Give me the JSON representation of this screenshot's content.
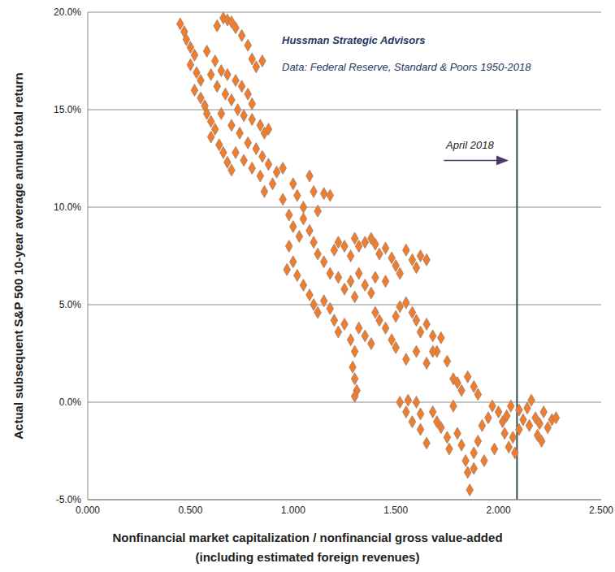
{
  "chart_data": {
    "type": "scatter",
    "title": "Hussman Strategic Advisors",
    "subtitle": "Data: Federal Reserve, Standard & Poors 1950-2018",
    "xlabel": [
      "Nonfinancial market capitalization / nonfinancial gross value-added",
      "(including estimated foreign revenues)"
    ],
    "ylabel": "Actual subsequent S&P 500 10-year average annual total return",
    "x": [
      0.45,
      0.47,
      0.48,
      0.5,
      0.52,
      0.5,
      0.53,
      0.55,
      0.52,
      0.55,
      0.57,
      0.58,
      0.6,
      0.62,
      0.6,
      0.64,
      0.66,
      0.68,
      0.7,
      0.66,
      0.68,
      0.7,
      0.72,
      0.63,
      0.75,
      0.78,
      0.8,
      0.82,
      0.85,
      0.58,
      0.62,
      0.65,
      0.68,
      0.72,
      0.75,
      0.78,
      0.8,
      0.6,
      0.63,
      0.67,
      0.7,
      0.73,
      0.76,
      0.8,
      0.84,
      0.86,
      0.88,
      0.65,
      0.7,
      0.74,
      0.78,
      0.82,
      0.85,
      0.88,
      0.72,
      0.76,
      0.8,
      0.84,
      0.9,
      0.86,
      0.92,
      0.95,
      0.95,
      1.0,
      1.02,
      1.05,
      1.08,
      1.1,
      1.12,
      1.15,
      1.18,
      0.98,
      1.0,
      1.03,
      1.05,
      1.08,
      1.1,
      1.12,
      0.98,
      1.0,
      1.02,
      0.97,
      1.05,
      1.08,
      1.1,
      1.12,
      1.15,
      1.18,
      1.2,
      1.22,
      1.25,
      1.28,
      1.3,
      1.32,
      1.35,
      1.38,
      1.4,
      1.42,
      1.45,
      1.48,
      1.5,
      1.52,
      1.55,
      1.58,
      1.6,
      1.62,
      1.65,
      1.22,
      1.25,
      1.28,
      1.3,
      1.32,
      1.35,
      1.38,
      1.4,
      1.45,
      1.15,
      1.18,
      1.2,
      1.22,
      1.25,
      1.28,
      1.3,
      1.29,
      1.3,
      1.31,
      1.3,
      1.32,
      1.35,
      1.38,
      1.4,
      1.42,
      1.45,
      1.48,
      1.5,
      1.52,
      1.55,
      1.58,
      1.6,
      1.62,
      1.65,
      1.68,
      1.7,
      1.72,
      1.5,
      1.55,
      1.6,
      1.65,
      1.68,
      1.75,
      1.78,
      1.8,
      1.82,
      1.85,
      1.88,
      1.9,
      1.52,
      1.56,
      1.6,
      1.55,
      1.58,
      1.62,
      1.65,
      1.62,
      1.68,
      1.7,
      1.72,
      1.75,
      1.76,
      1.78,
      1.8,
      1.82,
      1.84,
      1.85,
      1.86,
      1.88,
      1.9,
      1.92,
      1.95,
      1.97,
      2.0,
      2.02,
      2.04,
      2.05,
      2.07,
      2.08,
      2.1,
      2.1,
      2.12,
      2.14,
      2.15,
      2.16,
      2.18,
      2.2,
      2.22,
      2.24,
      2.26,
      2.28,
      2.06,
      2.03,
      1.98,
      1.93,
      1.88,
      2.19,
      2.21
    ],
    "values": [
      19.4,
      19.0,
      18.6,
      18.2,
      17.8,
      17.3,
      16.9,
      16.5,
      16.0,
      15.6,
      15.2,
      14.8,
      14.4,
      14.0,
      13.6,
      13.2,
      12.8,
      12.3,
      11.9,
      19.7,
      19.6,
      19.5,
      19.2,
      19.3,
      18.8,
      18.3,
      17.6,
      17.2,
      17.5,
      18.0,
      17.5,
      17.0,
      16.8,
      16.5,
      16.2,
      15.8,
      15.3,
      16.8,
      16.2,
      15.8,
      15.5,
      15.0,
      14.7,
      14.5,
      14.2,
      13.8,
      14.0,
      14.8,
      14.2,
      13.8,
      13.3,
      13.0,
      12.6,
      12.2,
      12.8,
      12.4,
      12.0,
      11.6,
      11.2,
      10.8,
      11.8,
      12.0,
      10.4,
      11.2,
      10.6,
      10.0,
      11.6,
      10.8,
      9.8,
      10.7,
      10.6,
      9.6,
      9.0,
      8.5,
      9.4,
      8.8,
      8.2,
      7.6,
      8.0,
      7.2,
      6.5,
      6.8,
      6.0,
      5.5,
      5.0,
      4.6,
      7.2,
      6.6,
      7.8,
      8.2,
      8.0,
      7.5,
      8.4,
      8.0,
      8.2,
      8.4,
      8.1,
      7.6,
      7.9,
      7.4,
      7.0,
      6.6,
      7.8,
      7.3,
      6.9,
      7.5,
      7.3,
      6.4,
      5.8,
      6.2,
      5.4,
      6.6,
      6.0,
      5.6,
      6.4,
      6.2,
      5.2,
      4.8,
      4.2,
      3.6,
      4.0,
      3.2,
      2.6,
      1.8,
      1.2,
      0.6,
      0.3,
      3.8,
      3.4,
      3.0,
      4.6,
      4.2,
      3.8,
      3.2,
      4.4,
      4.9,
      5.1,
      4.6,
      4.2,
      3.6,
      4.0,
      3.4,
      2.6,
      3.3,
      2.8,
      2.2,
      2.6,
      2.0,
      2.6,
      2.1,
      1.2,
      1.0,
      0.6,
      1.3,
      0.8,
      0.4,
      0.0,
      0.1,
      0.0,
      -0.5,
      -1.0,
      -1.4,
      -2.1,
      -0.6,
      -0.5,
      -1.0,
      -1.3,
      -1.8,
      -2.4,
      -0.2,
      -1.6,
      -2.2,
      -3.0,
      -3.6,
      -4.5,
      -2.6,
      -2.0,
      -1.2,
      -0.8,
      -0.2,
      -0.5,
      -1.0,
      -0.7,
      -2.3,
      -1.8,
      -2.6,
      -0.4,
      -1.4,
      -0.9,
      -0.3,
      -1.2,
      0.1,
      -0.8,
      -1.1,
      -0.5,
      -1.3,
      -0.9,
      -0.8,
      -0.2,
      -1.6,
      -2.4,
      -3.0,
      -3.4,
      -1.7,
      -2.0
    ],
    "color": "#f07c2c",
    "marker": "diamond",
    "xlim": [
      0,
      2.5
    ],
    "xticks": [
      {
        "value": 0,
        "label": "0.000"
      },
      {
        "value": 0.5,
        "label": "0.500"
      },
      {
        "value": 1,
        "label": "1.000"
      },
      {
        "value": 1.5,
        "label": "1.500"
      },
      {
        "value": 2,
        "label": "2.000"
      },
      {
        "value": 2.5,
        "label": "2.500"
      }
    ],
    "ylim": [
      -5,
      20
    ],
    "yticks": [
      {
        "value": -5,
        "label": "-5.0%"
      },
      {
        "value": 0,
        "label": "0.0%"
      },
      {
        "value": 5,
        "label": "5.0%"
      },
      {
        "value": 10,
        "label": "10.0%"
      },
      {
        "value": 15,
        "label": "15.0%"
      },
      {
        "value": 20,
        "label": "20.0%"
      }
    ],
    "grid": true,
    "annotations": [
      {
        "text": "April 2018",
        "x": 2.09,
        "y": 12.4,
        "y_range": [
          -5,
          15
        ]
      }
    ]
  }
}
